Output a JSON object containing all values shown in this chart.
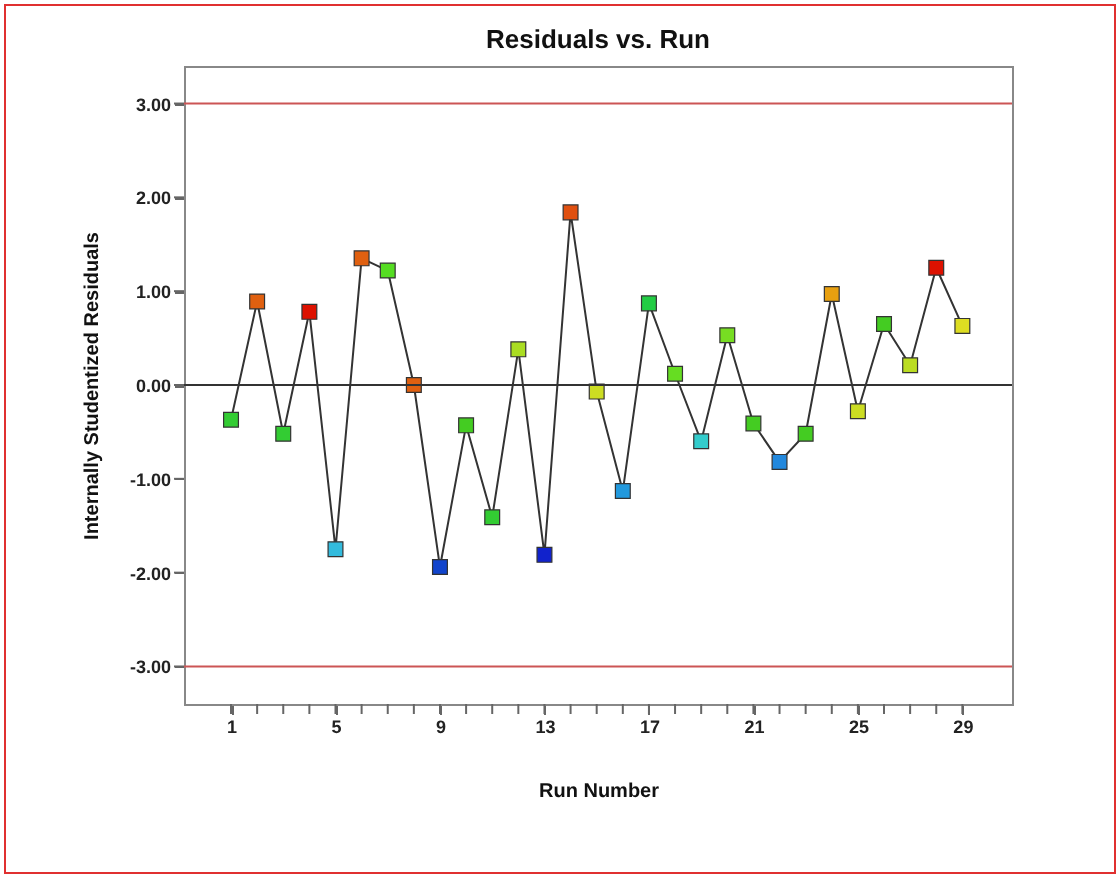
{
  "chart_data": {
    "type": "line",
    "title": "Residuals vs. Run",
    "xlabel": "Run Number",
    "ylabel": "Internally Studentized Residuals",
    "x": [
      1,
      2,
      3,
      4,
      5,
      6,
      7,
      8,
      9,
      10,
      11,
      12,
      13,
      14,
      15,
      16,
      17,
      18,
      19,
      20,
      21,
      22,
      23,
      24,
      25,
      26,
      27,
      28,
      29
    ],
    "series": [
      {
        "color": "#333333",
        "marker": "none",
        "values": [
          -0.37,
          0.89,
          -0.52,
          0.78,
          -1.75,
          1.35,
          1.22,
          0.0,
          -1.94,
          -0.43,
          -1.41,
          0.38,
          -1.81,
          1.84,
          -0.07,
          -1.13,
          0.87,
          0.12,
          -0.6,
          0.53,
          -0.41,
          -0.82,
          -0.52,
          0.97,
          -0.28,
          0.65,
          0.21,
          1.25,
          0.63
        ]
      },
      {
        "type": "scatter",
        "marker": "square",
        "values": [
          -0.37,
          0.89,
          -0.52,
          0.78,
          -1.75,
          1.35,
          1.22,
          0.0,
          -1.94,
          -0.43,
          -1.41,
          0.38,
          -1.81,
          1.84,
          -0.07,
          -1.13,
          0.87,
          0.12,
          -0.6,
          0.53,
          -0.41,
          -0.82,
          -0.52,
          0.97,
          -0.28,
          0.65,
          0.21,
          1.25,
          0.63
        ],
        "colors": [
          "#33cc33",
          "#e06010",
          "#33cc33",
          "#dd1100",
          "#33bbdd",
          "#e06010",
          "#55dd22",
          "#e06010",
          "#1144cc",
          "#44cc22",
          "#33cc33",
          "#aadd22",
          "#1122cc",
          "#e05010",
          "#ccdd22",
          "#2299dd",
          "#22cc44",
          "#66dd22",
          "#33cccc",
          "#77dd22",
          "#44cc22",
          "#2288dd",
          "#44cc22",
          "#e8a010",
          "#ccdd22",
          "#44cc22",
          "#bbdd22",
          "#dd1100",
          "#dddd22"
        ]
      }
    ],
    "xlim": [
      -0.8,
      30.9
    ],
    "xticks": [
      1,
      {
        "value": 2,
        "label": null
      },
      {
        "value": 3,
        "label": null
      },
      {
        "value": 4,
        "label": null
      },
      5,
      {
        "value": 6,
        "label": null
      },
      {
        "value": 7,
        "label": null
      },
      {
        "value": 8,
        "label": null
      },
      9,
      {
        "value": 10,
        "label": null
      },
      {
        "value": 11,
        "label": null
      },
      {
        "value": 12,
        "label": null
      },
      13,
      {
        "value": 14,
        "label": null
      },
      {
        "value": 15,
        "label": null
      },
      {
        "value": 16,
        "label": null
      },
      17,
      {
        "value": 18,
        "label": null
      },
      {
        "value": 19,
        "label": null
      },
      {
        "value": 20,
        "label": null
      },
      21,
      {
        "value": 22,
        "label": null
      },
      {
        "value": 23,
        "label": null
      },
      {
        "value": 24,
        "label": null
      },
      25,
      {
        "value": 26,
        "label": null
      },
      {
        "value": 27,
        "label": null
      },
      {
        "value": 28,
        "label": null
      },
      29
    ],
    "ylim": [
      -3.4,
      3.4
    ],
    "yticks": [
      {
        "value": -3,
        "label": "-3.00"
      },
      {
        "value": -2,
        "label": "-2.00"
      },
      {
        "value": -1,
        "label": "-1.00"
      },
      {
        "value": 0,
        "label": "0.00"
      },
      {
        "value": 1,
        "label": "1.00"
      },
      {
        "value": 2,
        "label": "2.00"
      },
      {
        "value": 3,
        "label": "3.00"
      }
    ],
    "ref_lines": [
      {
        "axis": "y",
        "value": 3,
        "color": "#cc5555"
      },
      {
        "axis": "y",
        "value": 0,
        "color": "#333333"
      },
      {
        "axis": "y",
        "value": -3,
        "color": "#cc5555"
      }
    ],
    "grid": false
  }
}
